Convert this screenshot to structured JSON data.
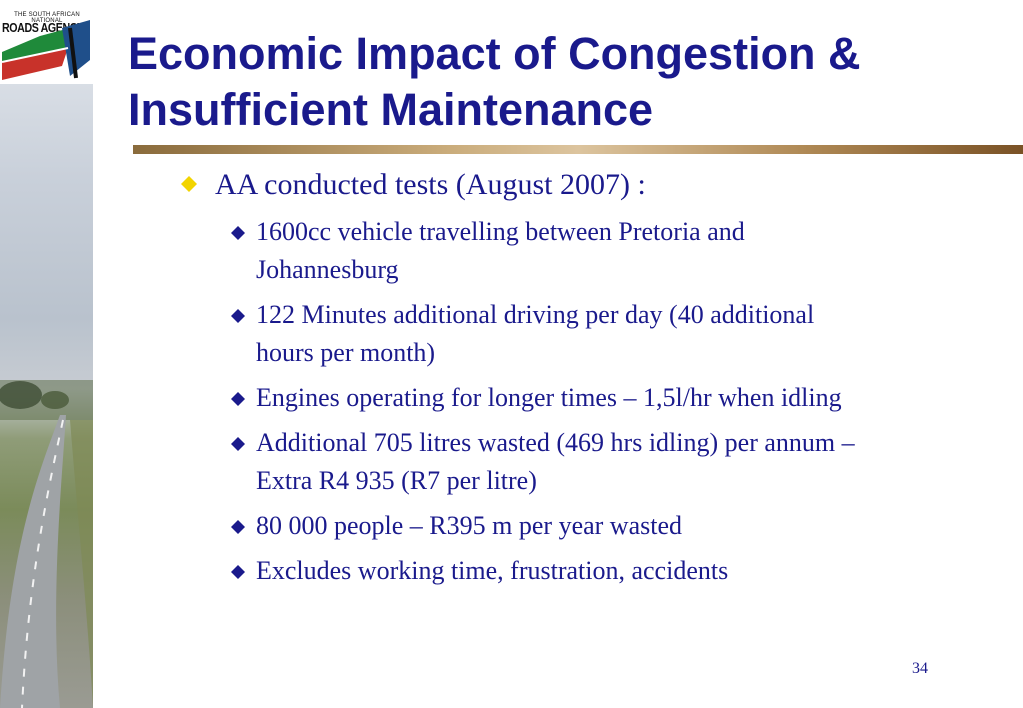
{
  "logo": {
    "top_text": "THE SOUTH AFRICAN NATIONAL",
    "main_text": "ROADS AGENCY"
  },
  "slide": {
    "title_line1": "Economic Impact of Congestion &",
    "title_line2": "Insufficient Maintenance",
    "main_bullet": "AA conducted tests (August 2007) :",
    "sub_bullets": [
      {
        "line1": "1600cc vehicle travelling between Pretoria and",
        "line2": "Johannesburg"
      },
      {
        "line1": "122 Minutes additional driving per day (40 additional",
        "line2": "hours per month)"
      },
      {
        "line1": "Engines operating for longer times – 1,5l/hr when idling",
        "line2": ""
      },
      {
        "line1": "Additional 705 litres wasted (469 hrs idling) per annum –",
        "line2": "Extra R4 935 (R7 per litre)"
      },
      {
        "line1": "80 000 people – R395 m per year wasted",
        "line2": ""
      },
      {
        "line1": "Excludes working time, frustration, accidents",
        "line2": ""
      }
    ],
    "page_number": "34"
  },
  "colors": {
    "title": "#1a1a8c",
    "main_bullet_marker": "#f2d400",
    "sub_bullet_marker": "#1a1a8c",
    "rule": "#b08a56"
  },
  "icons": {
    "main_bullet": "yellow-diamond-icon",
    "sub_bullet": "navy-diamond-icon"
  }
}
